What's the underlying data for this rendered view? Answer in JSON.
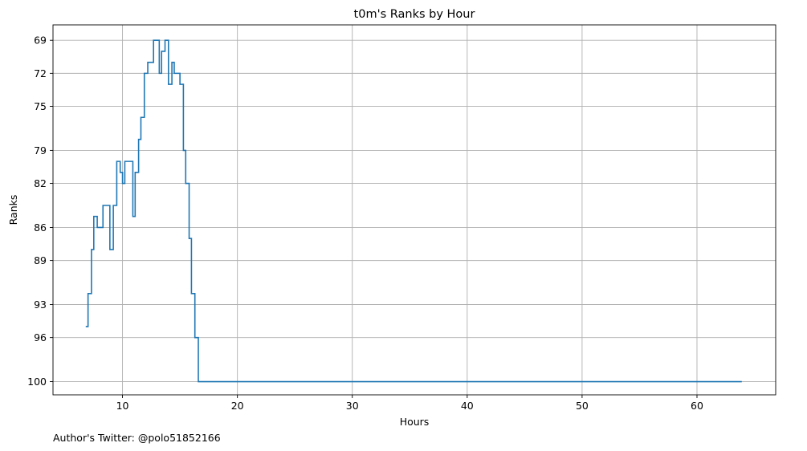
{
  "footer_text": "Author's Twitter: @polo51852166",
  "chart_data": {
    "type": "line",
    "title": "t0m's Ranks by Hour",
    "xlabel": "Hours",
    "ylabel": "Ranks",
    "xlim": [
      3.95,
      66.85
    ],
    "ylim": [
      101.2,
      67.6
    ],
    "y_inverted": true,
    "grid": true,
    "line_color": "#1f77b4",
    "step": "post",
    "x_ticks": [
      10,
      20,
      30,
      40,
      50,
      60
    ],
    "y_ticks": [
      69,
      72,
      75,
      79,
      82,
      86,
      89,
      93,
      96,
      100
    ],
    "series": [
      {
        "x": [
          6.8,
          7.0,
          7.3,
          7.5,
          7.8,
          8.3,
          8.9,
          9.2,
          9.5,
          9.8,
          10.0,
          10.2,
          10.9,
          11.1,
          11.4,
          11.6,
          11.9,
          12.2,
          12.7,
          13.2,
          13.4,
          13.7,
          14.0,
          14.3,
          14.5,
          15.0,
          15.3,
          15.5,
          15.8,
          16.0,
          16.3,
          16.6,
          63.9
        ],
        "values": [
          95,
          92,
          88,
          85,
          86,
          84,
          88,
          84,
          80,
          81,
          82,
          80,
          85,
          81,
          78,
          76,
          72,
          71,
          69,
          72,
          70,
          69,
          73,
          71,
          72,
          73,
          79,
          82,
          87,
          92,
          96,
          100,
          100
        ]
      }
    ]
  }
}
